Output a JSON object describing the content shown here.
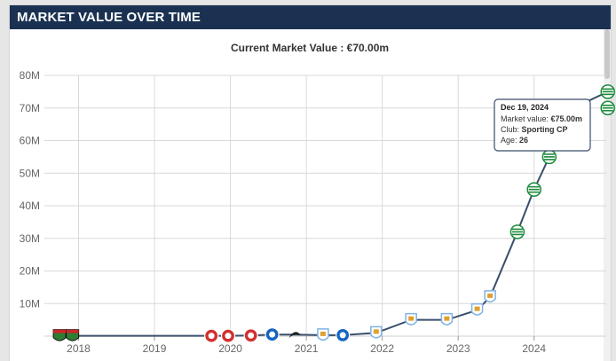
{
  "header": {
    "title": "MARKET VALUE OVER TIME"
  },
  "chart_data": {
    "type": "line",
    "subtitle": "Current Market Value : €70.00m",
    "xlabel": "",
    "ylabel": "",
    "x_ticks": [
      "2018",
      "2019",
      "2020",
      "2021",
      "2022",
      "2023",
      "2024"
    ],
    "y_ticks": [
      "10M",
      "20M",
      "30M",
      "40M",
      "50M",
      "60M",
      "70M",
      "80M"
    ],
    "ylim": [
      0,
      80
    ],
    "xlim": [
      2017.55,
      2024.95
    ],
    "grid": true,
    "line_color": "#3a4e6b",
    "series": [
      {
        "values_unit": "M €",
        "points": [
          {
            "x": 2017.75,
            "y": 0.1,
            "club": "red-green"
          },
          {
            "x": 2017.92,
            "y": 0.1,
            "club": "red-green"
          },
          {
            "x": 2019.75,
            "y": 0.1,
            "club": "red-white"
          },
          {
            "x": 2019.97,
            "y": 0.1,
            "club": "red-white"
          },
          {
            "x": 2020.27,
            "y": 0.2,
            "club": "red-white"
          },
          {
            "x": 2020.55,
            "y": 0.5,
            "club": "blue-white"
          },
          {
            "x": 2020.85,
            "y": 0.5,
            "club": "swan"
          },
          {
            "x": 2021.22,
            "y": 0.3,
            "club": "sky-blue"
          },
          {
            "x": 2021.48,
            "y": 0.3,
            "club": "blue-white"
          },
          {
            "x": 2021.92,
            "y": 1.0,
            "club": "sky-blue"
          },
          {
            "x": 2022.38,
            "y": 5.0,
            "club": "sky-blue"
          },
          {
            "x": 2022.85,
            "y": 5.0,
            "club": "sky-blue"
          },
          {
            "x": 2023.25,
            "y": 8.0,
            "club": "sky-blue"
          },
          {
            "x": 2023.42,
            "y": 12.0,
            "club": "sky-blue"
          },
          {
            "x": 2023.78,
            "y": 32.0,
            "club": "green-white"
          },
          {
            "x": 2024.0,
            "y": 45.0,
            "club": "green-white"
          },
          {
            "x": 2024.2,
            "y": 55.0,
            "club": "green-white"
          },
          {
            "x": 2024.52,
            "y": 70.0,
            "club": "green-white"
          },
          {
            "x": 2024.97,
            "y": 75.0,
            "club": "green-white"
          },
          {
            "x": 2024.97,
            "y": 70.0,
            "club": "green-white"
          }
        ]
      }
    ],
    "tooltip": {
      "date": "Dec 19, 2024",
      "market_value_label": "Market value: ",
      "market_value": "€75.00m",
      "club_label": "Club: ",
      "club": "Sporting CP",
      "age_label": "Age: ",
      "age": "26"
    },
    "club_colors": {
      "red-green": "#2e7d32",
      "red-white": "#d32f2f",
      "blue-white": "#1565c0",
      "swan": "#222222",
      "sky-blue": "#7fb2e5",
      "green-white": "#1b8a3a"
    }
  }
}
